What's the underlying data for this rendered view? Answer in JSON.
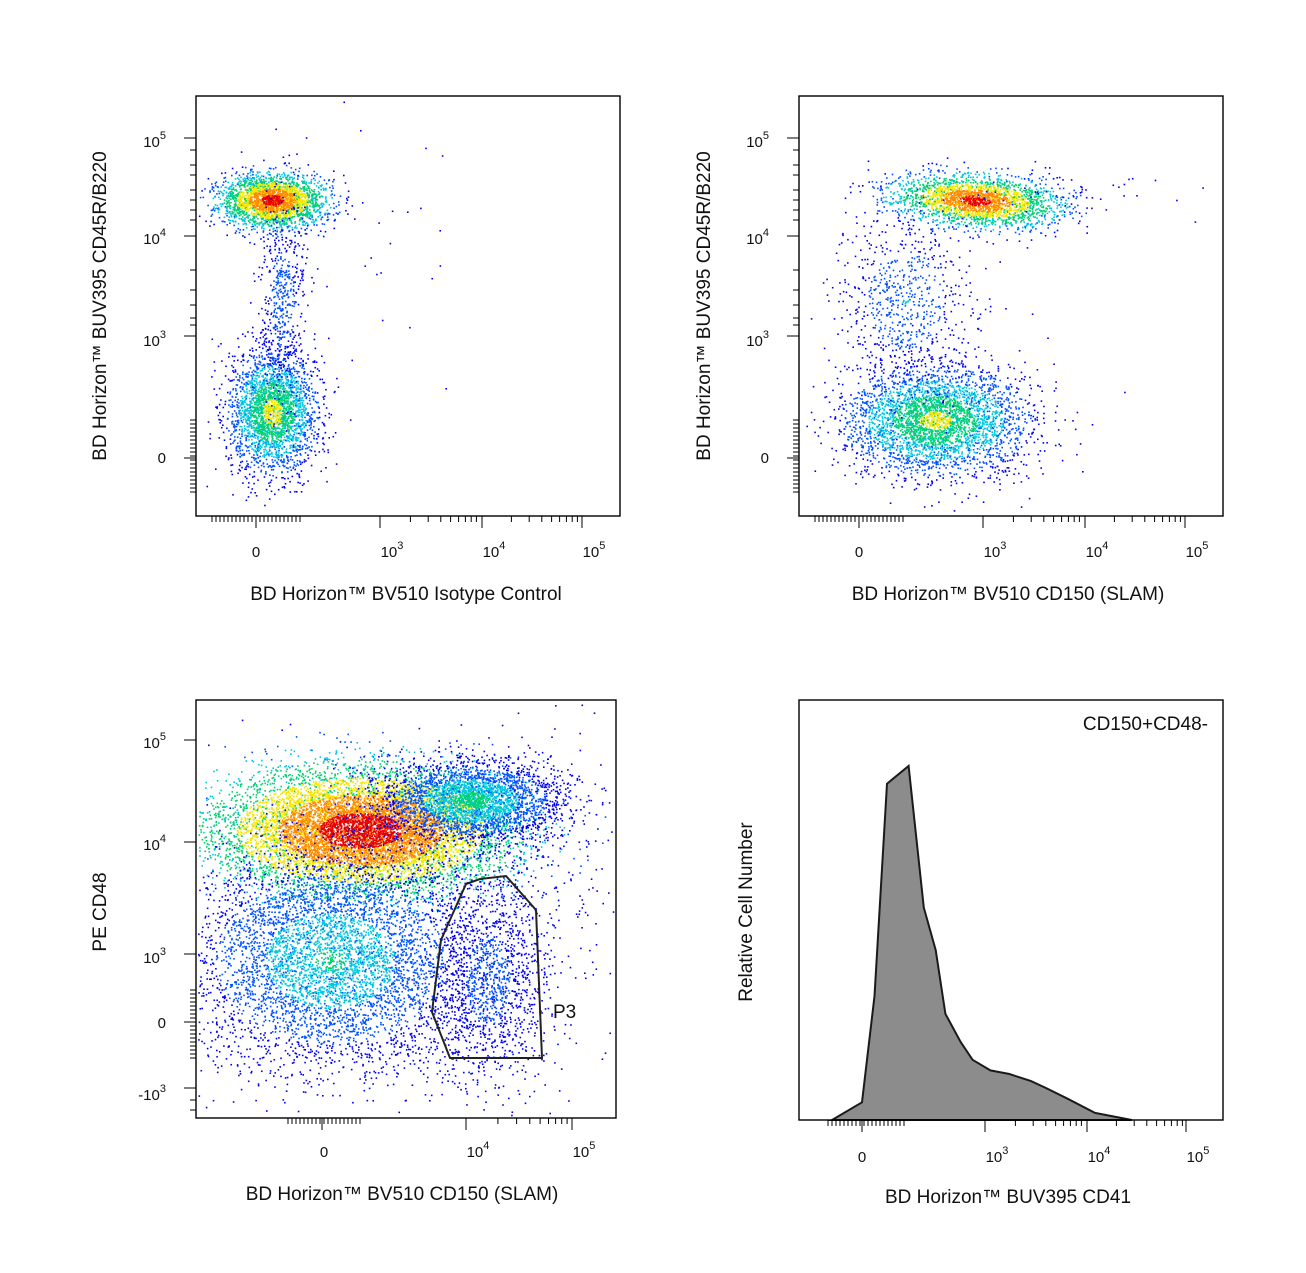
{
  "colors": {
    "density": [
      "#0000ee",
      "#0050ff",
      "#00c8e0",
      "#00d070",
      "#f5e600",
      "#ff8800",
      "#e60000"
    ],
    "histogram_fill": "#8c8c8c",
    "histogram_stroke": "#1a1a1a",
    "frame": "#000000"
  },
  "chart_data": [
    {
      "type": "scatter",
      "subtype": "flow-cytometry-density-dot-plot",
      "xlabel": "BD Horizon™ BV510 Isotype Control",
      "ylabel": "BD Horizon™ BUV395 CD45R/B220",
      "x_scale": "biexponential",
      "y_scale": "biexponential",
      "x_ticks": [
        {
          "value": "0",
          "exp": ""
        },
        {
          "value": "10",
          "exp": "3"
        },
        {
          "value": "10",
          "exp": "4"
        },
        {
          "value": "10",
          "exp": "5"
        }
      ],
      "y_ticks": [
        {
          "value": "0",
          "exp": ""
        },
        {
          "value": "10",
          "exp": "3"
        },
        {
          "value": "10",
          "exp": "4"
        },
        {
          "value": "10",
          "exp": "5"
        }
      ],
      "populations": [
        {
          "center_x": 150,
          "center_y": 20000,
          "relative_density": 1.0
        },
        {
          "center_x": 100,
          "center_y": 150,
          "relative_density": 0.7
        }
      ]
    },
    {
      "type": "scatter",
      "subtype": "flow-cytometry-density-dot-plot",
      "xlabel": "BD Horizon™ BV510 CD150 (SLAM)",
      "ylabel": "BD Horizon™ BUV395 CD45R/B220",
      "x_scale": "biexponential",
      "y_scale": "biexponential",
      "x_ticks": [
        {
          "value": "0",
          "exp": ""
        },
        {
          "value": "10",
          "exp": "3"
        },
        {
          "value": "10",
          "exp": "4"
        },
        {
          "value": "10",
          "exp": "5"
        }
      ],
      "y_ticks": [
        {
          "value": "0",
          "exp": ""
        },
        {
          "value": "10",
          "exp": "3"
        },
        {
          "value": "10",
          "exp": "4"
        },
        {
          "value": "10",
          "exp": "5"
        }
      ],
      "populations": [
        {
          "center_x": 900,
          "center_y": 20000,
          "relative_density": 1.0
        },
        {
          "center_x": 300,
          "center_y": 100,
          "relative_density": 0.6
        }
      ]
    },
    {
      "type": "scatter",
      "subtype": "flow-cytometry-density-dot-plot",
      "xlabel": "BD Horizon™ BV510 CD150 (SLAM)",
      "ylabel": "PE CD48",
      "x_scale": "biexponential",
      "y_scale": "biexponential",
      "x_ticks": [
        {
          "value": "0",
          "exp": ""
        },
        {
          "value": "10",
          "exp": "4"
        },
        {
          "value": "10",
          "exp": "5"
        }
      ],
      "y_ticks": [
        {
          "value": "-10",
          "exp": "3"
        },
        {
          "value": "0",
          "exp": ""
        },
        {
          "value": "10",
          "exp": "3"
        },
        {
          "value": "10",
          "exp": "4"
        },
        {
          "value": "10",
          "exp": "5"
        }
      ],
      "gate": {
        "label": "P3",
        "polygon_data_units": [
          [
            7000,
            3500
          ],
          [
            11000,
            4500
          ],
          [
            22000,
            4700
          ],
          [
            40000,
            2600
          ],
          [
            50000,
            -1200
          ],
          [
            7000,
            -1200
          ],
          [
            4000,
            0
          ],
          [
            4500,
            2000
          ]
        ]
      },
      "populations": [
        {
          "center_x": 300,
          "center_y": 10000,
          "relative_density": 1.0
        },
        {
          "center_x": 20000,
          "center_y": 600,
          "relative_density": 0.15
        }
      ]
    },
    {
      "type": "area",
      "subtype": "histogram",
      "annotation": "CD150+CD48-",
      "xlabel": "BD Horizon™ BUV395 CD41",
      "ylabel": "Relative Cell Number",
      "x_scale": "biexponential",
      "x_ticks": [
        {
          "value": "0",
          "exp": ""
        },
        {
          "value": "10",
          "exp": "3"
        },
        {
          "value": "10",
          "exp": "4"
        },
        {
          "value": "10",
          "exp": "5"
        }
      ],
      "x": [
        -200,
        0,
        50,
        100,
        150,
        200,
        250,
        300,
        400,
        500,
        700,
        1000,
        1500,
        2000,
        3000,
        5000,
        10000
      ],
      "values": [
        0,
        5,
        35,
        95,
        100,
        60,
        48,
        30,
        22,
        17,
        14,
        13,
        11,
        9,
        6,
        2,
        0
      ]
    }
  ]
}
